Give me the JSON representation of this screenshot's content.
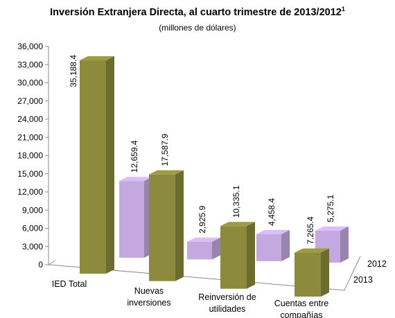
{
  "chart_data": {
    "type": "bar",
    "title": "Inversión Extranjera Directa, al cuarto trimestre de 2013/2012",
    "title_superscript": "1",
    "subtitle": "(millones de dólares)",
    "categories": [
      "IED Total",
      "Nuevas inversiones",
      "Reinversión de utilidades",
      "Cuentas entre compañías"
    ],
    "series": [
      {
        "name": "2012",
        "color": "#c4a9e0",
        "values": [
          12659.4,
          2925.9,
          4458.4,
          5275.1
        ],
        "value_labels": [
          "12,659.4",
          "2,925.9",
          "4,458.4",
          "5,275.1"
        ]
      },
      {
        "name": "2013",
        "color": "#8c8a3c",
        "values": [
          35188.4,
          17587.9,
          10335.1,
          7265.4
        ],
        "value_labels": [
          "35,188.4",
          "17,587.9",
          "10,335.1",
          "7,265.4"
        ]
      }
    ],
    "ylim": [
      0,
      36000
    ],
    "yticks": [
      0,
      {
        "value": 3000,
        "label": "3,000"
      },
      {
        "value": 6000,
        "label": "6,000"
      },
      {
        "value": 9000,
        "label": "9,000"
      },
      {
        "value": 12000,
        "label": "12,000"
      },
      {
        "value": 15000,
        "label": "15,000"
      },
      {
        "value": 18000,
        "label": "18,000"
      },
      {
        "value": 21000,
        "label": "21,000"
      },
      {
        "value": 24000,
        "label": "24,000"
      },
      {
        "value": 27000,
        "label": "27,000"
      },
      {
        "value": 30000,
        "label": "30,000"
      },
      {
        "value": 33000,
        "label": "33,000"
      },
      {
        "value": 36000,
        "label": "36,000"
      }
    ]
  }
}
